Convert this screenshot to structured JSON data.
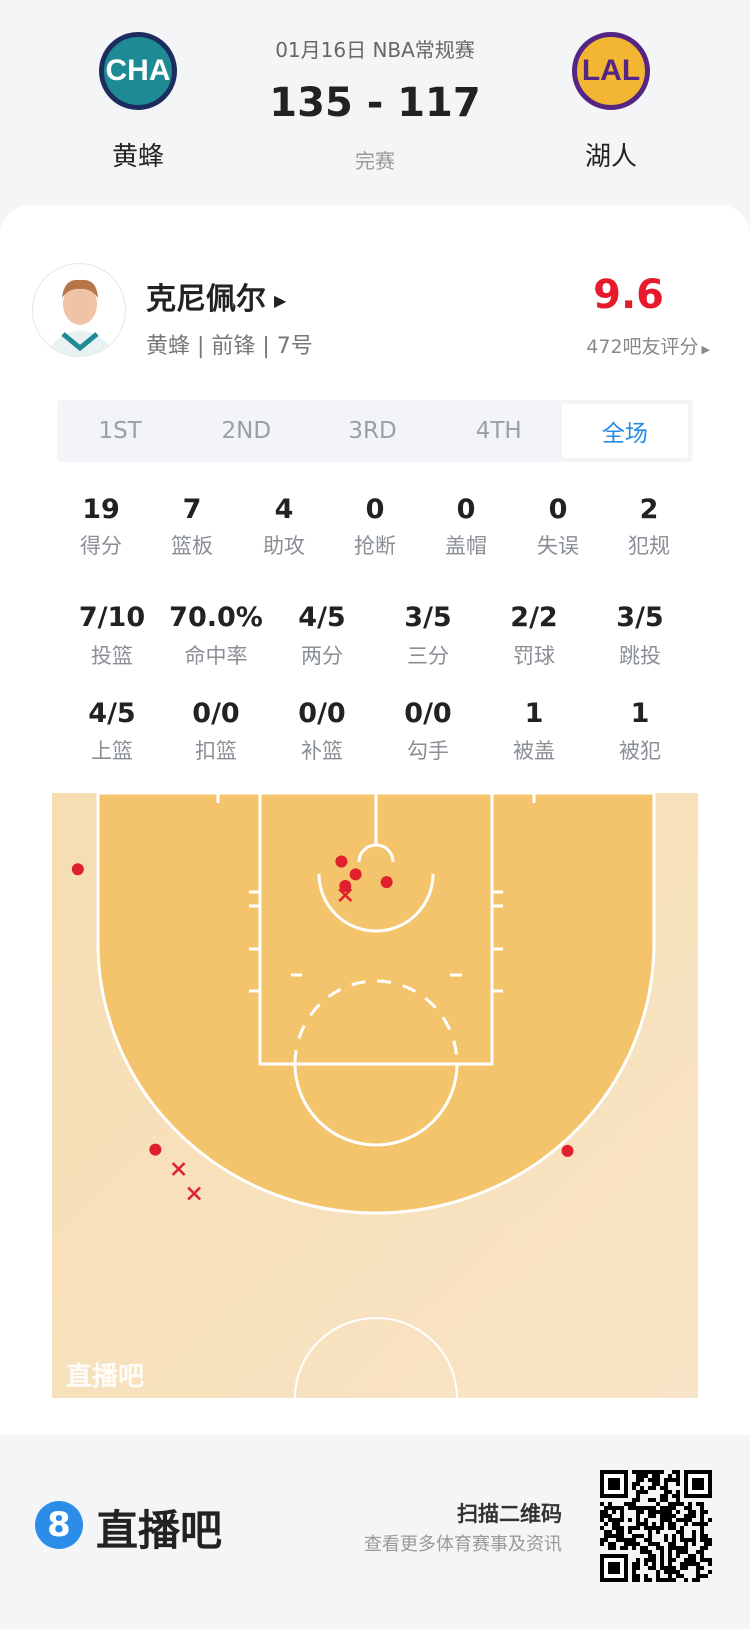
{
  "match": {
    "date_league": "01月16日 NBA常规赛",
    "score": "135 - 117",
    "status": "完赛",
    "home": {
      "abbr": "CHA",
      "name": "黄蜂",
      "color": "#1d8a94",
      "ring": "#1d2c5e"
    },
    "away": {
      "abbr": "LAL",
      "name": "湖人",
      "color": "#f2b632",
      "ring": "#552583"
    }
  },
  "player": {
    "name": "克尼佩尔",
    "sub": "黄蜂 | 前锋 | 7号",
    "rating": "9.6",
    "rating_count": "472吧友评分",
    "rating_color": "#e8192c"
  },
  "tabs": [
    {
      "label": "1ST"
    },
    {
      "label": "2ND"
    },
    {
      "label": "3RD"
    },
    {
      "label": "4TH"
    },
    {
      "label": "全场",
      "active": true
    }
  ],
  "stats_row1": [
    {
      "v": "19",
      "l": "得分"
    },
    {
      "v": "7",
      "l": "篮板"
    },
    {
      "v": "4",
      "l": "助攻"
    },
    {
      "v": "0",
      "l": "抢断"
    },
    {
      "v": "0",
      "l": "盖帽"
    },
    {
      "v": "0",
      "l": "失误"
    },
    {
      "v": "2",
      "l": "犯规"
    }
  ],
  "stats_row2": [
    {
      "v": "7/10",
      "l": "投篮"
    },
    {
      "v": "70.0%",
      "l": "命中率"
    },
    {
      "v": "4/5",
      "l": "两分"
    },
    {
      "v": "3/5",
      "l": "三分"
    },
    {
      "v": "2/2",
      "l": "罚球"
    },
    {
      "v": "3/5",
      "l": "跳投"
    }
  ],
  "stats_row3": [
    {
      "v": "4/5",
      "l": "上篮"
    },
    {
      "v": "0/0",
      "l": "扣篮"
    },
    {
      "v": "0/0",
      "l": "补篮"
    },
    {
      "v": "0/0",
      "l": "勾手"
    },
    {
      "v": "1",
      "l": "被盖"
    },
    {
      "v": "1",
      "l": "被犯"
    }
  ],
  "chart_data": {
    "type": "scatter",
    "units": "feet from left sideline / baseline (half court 50x47)",
    "watermark": "直播吧",
    "made": [
      [
        2.0,
        5.9
      ],
      [
        22.4,
        5.3
      ],
      [
        23.5,
        6.3
      ],
      [
        22.7,
        7.2
      ],
      [
        25.9,
        6.9
      ],
      [
        8.0,
        27.6
      ],
      [
        39.9,
        27.7
      ]
    ],
    "missed": [
      [
        22.7,
        7.9
      ],
      [
        9.8,
        29.1
      ],
      [
        11.0,
        31.0
      ]
    ],
    "marker_color": "#e0202e"
  },
  "footer": {
    "brand": "直播吧",
    "brand_icon": "8",
    "scan_title": "扫描二维码",
    "scan_sub": "查看更多体育赛事及资讯"
  }
}
